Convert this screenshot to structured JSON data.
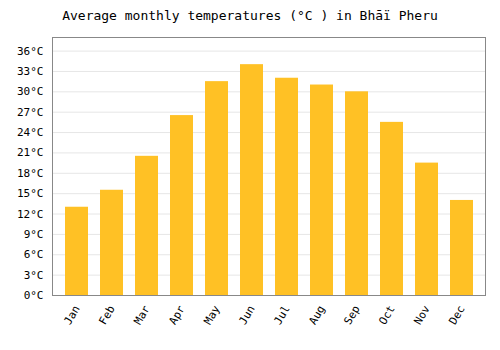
{
  "chart_data": {
    "type": "bar",
    "title": "Average monthly temperatures (°C ) in Bhāï Pheru",
    "categories": [
      "Jan",
      "Feb",
      "Mar",
      "Apr",
      "May",
      "Jun",
      "Jul",
      "Aug",
      "Sep",
      "Oct",
      "Nov",
      "Dec"
    ],
    "values": [
      13.0,
      15.5,
      20.5,
      26.5,
      31.5,
      34.0,
      32.0,
      31.0,
      30.0,
      25.5,
      19.5,
      14.0
    ],
    "color": "#FFC125",
    "ylim": [
      0,
      38
    ],
    "yticks": [
      {
        "value": 0,
        "label": "0°C"
      },
      {
        "value": 3,
        "label": "3°C"
      },
      {
        "value": 6,
        "label": "6°C"
      },
      {
        "value": 9,
        "label": "9°C"
      },
      {
        "value": 12,
        "label": "12°C"
      },
      {
        "value": 15,
        "label": "15°C"
      },
      {
        "value": 18,
        "label": "18°C"
      },
      {
        "value": 21,
        "label": "21°C"
      },
      {
        "value": 24,
        "label": "24°C"
      },
      {
        "value": 27,
        "label": "27°C"
      },
      {
        "value": 30,
        "label": "30°C"
      },
      {
        "value": 33,
        "label": "33°C"
      },
      {
        "value": 36,
        "label": "36°C"
      }
    ],
    "grid": true
  }
}
